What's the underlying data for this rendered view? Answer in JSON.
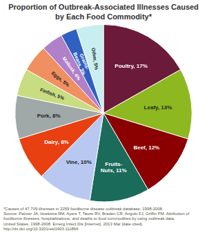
{
  "chart_data": {
    "type": "pie",
    "title": "Proportion of Outbreak-Associated Illnesses Caused by Each Food Commodity*",
    "annotations": [
      "*Causes of 47,709 illnesses in 3259 foodborne disease outbreak database, 1998-2008.\nSource: Painter JA, Hoekstra RM, Ayers T, Tauze RV, Braden CR, Angulo FJ, Griffin PM. Attribution of\nfoodborne illnesses, hospitalizations, and deaths to food commodities by using outbreak data,\nUnited States, 1998-2008. Emerg Infect Dis [Internet]. 2013 Mar [date cited].\nhttp://dx.doi.org/10.3201/eid1903.111866"
    ],
    "categories": [
      "Poultry, 17%",
      "Leafy, 13%",
      "Beef, 12%",
      "Fruits-\nNuts, 11%",
      "Vine, 10%",
      "Dairy, 8%",
      "Pork, 8%",
      "Finfish, 5%",
      "Eggs, 5%",
      "Mollusk, 4%",
      "Grains-\nBeans, 3%",
      "Other, 5%"
    ],
    "values": [
      17,
      13,
      12,
      11,
      10,
      8,
      8,
      5,
      5,
      4,
      3,
      5
    ],
    "colors": [
      "#6b1a3a",
      "#8db820",
      "#8b0000",
      "#1a6b5a",
      "#b8c8f0",
      "#e84010",
      "#a0a8a8",
      "#c8dc80",
      "#f09060",
      "#b080c8",
      "#3060c0",
      "#c8eef0"
    ]
  }
}
